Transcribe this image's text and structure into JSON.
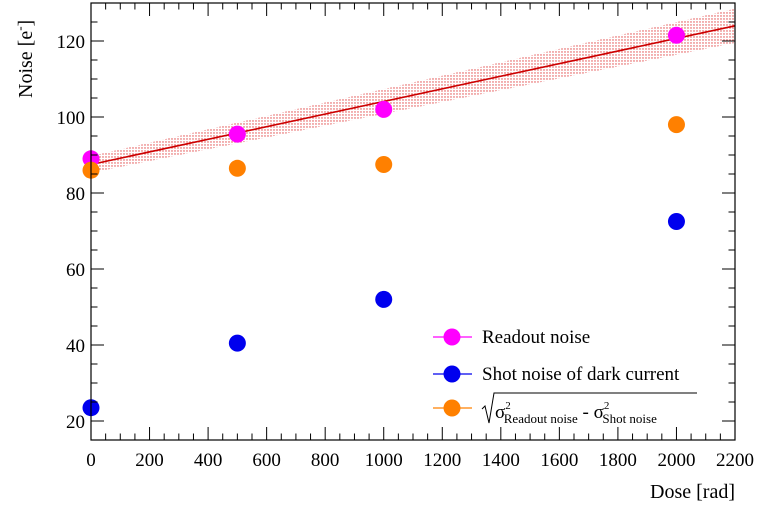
{
  "chart_data": {
    "type": "scatter",
    "xlabel": "Dose [rad]",
    "ylabel_main": "Noise [e",
    "ylabel_sup": "-",
    "ylabel_close": "]",
    "xlim": [
      0,
      2200
    ],
    "ylim": [
      15,
      130
    ],
    "x_ticks": [
      "0",
      "200",
      "400",
      "600",
      "800",
      "1000",
      "1200",
      "1400",
      "1600",
      "1800",
      "2000",
      "2200"
    ],
    "y_ticks": [
      "20",
      "40",
      "60",
      "80",
      "100",
      "120"
    ],
    "grid": false,
    "legend_position": "bottom-right",
    "series": [
      {
        "name": "Readout noise",
        "color": "#ff00ff",
        "x": [
          0,
          500,
          1000,
          2000
        ],
        "y": [
          89,
          95.5,
          102,
          121.5
        ]
      },
      {
        "name": "Shot noise of dark current",
        "color": "#0000ee",
        "x": [
          0,
          500,
          1000,
          2000
        ],
        "y": [
          23.5,
          40.5,
          52,
          72.5
        ]
      },
      {
        "name": "sqrt(σ²_Readout noise - σ²_Shot noise)",
        "color": "#ff8000",
        "x": [
          0,
          500,
          1000,
          2000
        ],
        "y": [
          86,
          86.5,
          87.5,
          98
        ]
      }
    ],
    "fit": {
      "type": "linear",
      "color": "#cc0000",
      "x": [
        0,
        2200
      ],
      "y": [
        87.5,
        124
      ],
      "band_halfwidth": [
        2.2,
        4.5
      ]
    },
    "legend_formula": {
      "sigma": "σ",
      "sq": "2",
      "sub1": "Readout noise",
      "minus": " - ",
      "sub2": "Shot noise"
    }
  }
}
